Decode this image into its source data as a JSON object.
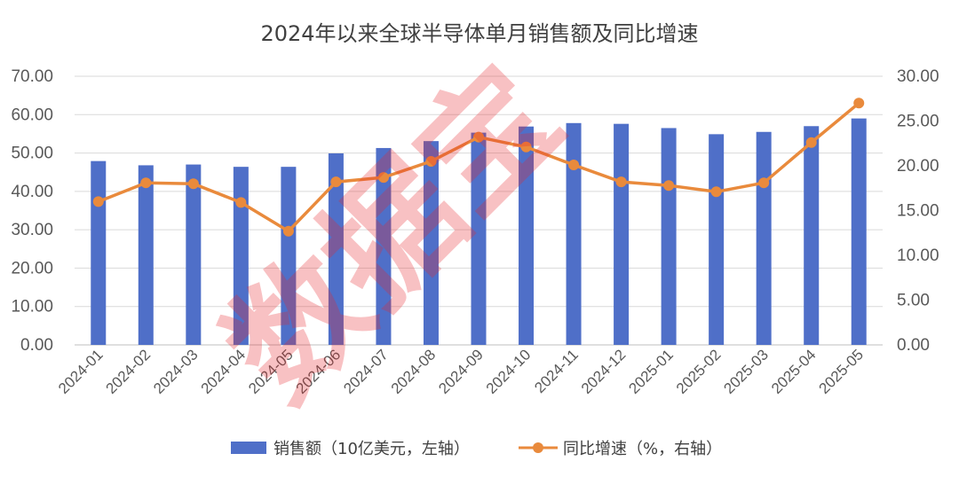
{
  "chart_data": {
    "type": "bar+line",
    "title": "2024年以来全球半导体单月销售额及同比增速",
    "categories": [
      "2024-01",
      "2024-02",
      "2024-03",
      "2024-04",
      "2024-05",
      "2024-06",
      "2024-07",
      "2024-08",
      "2024-09",
      "2024-10",
      "2024-11",
      "2024-12",
      "2025-01",
      "2025-02",
      "2025-03",
      "2025-04",
      "2025-05"
    ],
    "series": [
      {
        "name": "销售额（10亿美元，左轴）",
        "type": "bar",
        "axis": "left",
        "color": "#4f6fc8",
        "values": [
          47.9,
          46.8,
          47.0,
          46.4,
          46.4,
          49.9,
          51.3,
          53.1,
          55.3,
          56.9,
          57.8,
          57.6,
          56.5,
          54.9,
          55.5,
          57.0,
          59.0
        ]
      },
      {
        "name": "同比增速（%，右轴）",
        "type": "line",
        "axis": "right",
        "color": "#e98a3c",
        "values": [
          16.0,
          18.1,
          18.0,
          15.9,
          12.7,
          18.2,
          18.7,
          20.5,
          23.2,
          22.1,
          20.1,
          18.2,
          17.8,
          17.1,
          18.1,
          22.6,
          27.0
        ]
      }
    ],
    "y_left": {
      "min": 0,
      "max": 70,
      "step": 10,
      "ticks": [
        "0.00",
        "10.00",
        "20.00",
        "30.00",
        "40.00",
        "50.00",
        "60.00",
        "70.00"
      ]
    },
    "y_right": {
      "min": 0,
      "max": 30,
      "step": 5,
      "ticks": [
        "0.00",
        "5.00",
        "10.00",
        "15.00",
        "20.00",
        "25.00",
        "30.00"
      ]
    },
    "grid": true,
    "legend_position": "bottom",
    "watermark": "数据宝"
  }
}
